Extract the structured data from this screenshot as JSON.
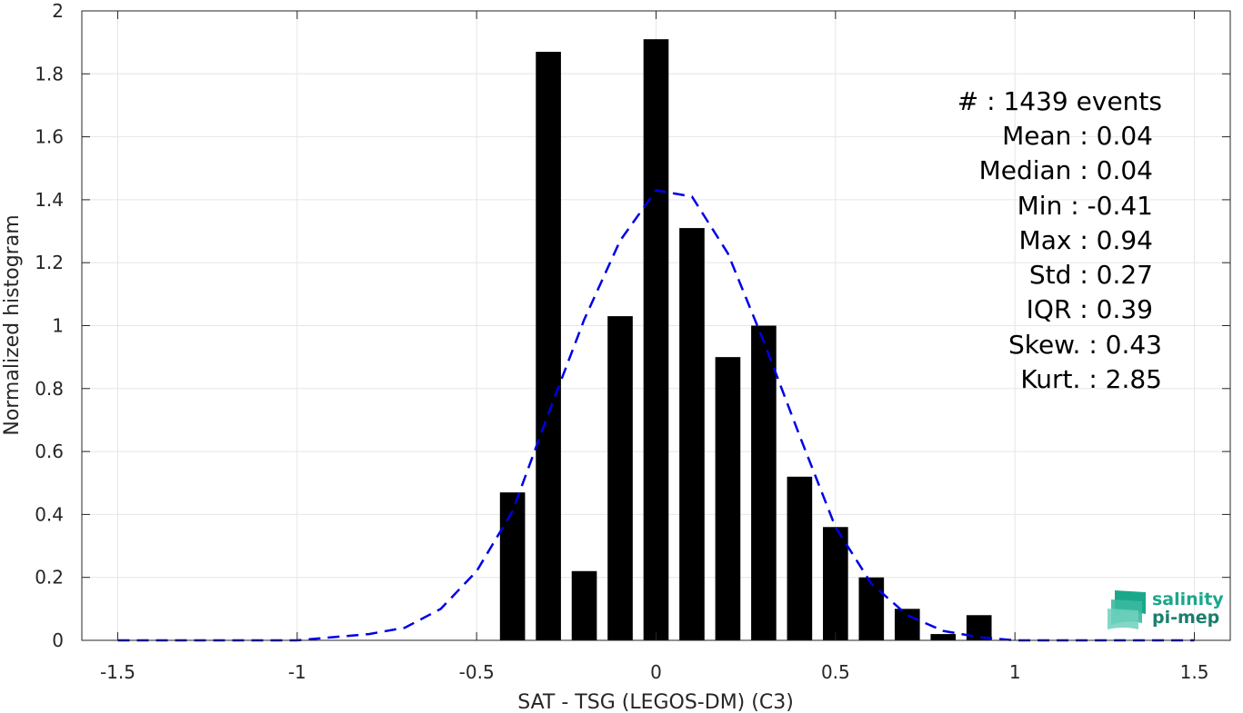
{
  "chart_data": {
    "type": "bar",
    "xlabel": "SAT - TSG (LEGOS-DM) (C3)",
    "ylabel": "Normalized histogram",
    "xlim": [
      -1.6,
      1.6
    ],
    "ylim": [
      0,
      2
    ],
    "grid": true,
    "x_ticks": [
      -1.5,
      -1,
      -0.5,
      0,
      0.5,
      1,
      1.5
    ],
    "x_tick_labels": [
      "-1.5",
      "-1",
      "-0.5",
      "0",
      "0.5",
      "1",
      "1.5"
    ],
    "y_ticks": [
      0,
      0.2,
      0.4,
      0.6,
      0.8,
      1,
      1.2,
      1.4,
      1.6,
      1.8,
      2
    ],
    "y_tick_labels": [
      "0",
      "0.2",
      "0.4",
      "0.6",
      "0.8",
      "1",
      "1.2",
      "1.4",
      "1.6",
      "1.8",
      "2"
    ],
    "bar_width": 0.07,
    "bars": {
      "color": "#000000",
      "x": [
        -0.4,
        -0.3,
        -0.2,
        -0.1,
        0,
        0.1,
        0.2,
        0.3,
        0.4,
        0.5,
        0.6,
        0.7,
        0.8,
        0.9
      ],
      "values": [
        0.47,
        1.87,
        0.22,
        1.03,
        1.91,
        1.31,
        0.9,
        1.0,
        0.52,
        0.36,
        0.2,
        0.1,
        0.02,
        0.08
      ]
    },
    "fit_curve": {
      "style": "dashed",
      "color": "#0000e6",
      "x": [
        -1.5,
        -1.4,
        -1.3,
        -1.2,
        -1.1,
        -1.0,
        -0.9,
        -0.8,
        -0.7,
        -0.6,
        -0.5,
        -0.4,
        -0.3,
        -0.2,
        -0.1,
        0.0,
        0.1,
        0.2,
        0.3,
        0.4,
        0.5,
        0.6,
        0.7,
        0.8,
        0.9,
        1.0,
        1.1,
        1.2,
        1.3,
        1.4,
        1.5
      ],
      "y": [
        0,
        0,
        0,
        0,
        0,
        0,
        0.01,
        0.02,
        0.04,
        0.1,
        0.22,
        0.41,
        0.72,
        1.02,
        1.27,
        1.43,
        1.41,
        1.23,
        0.95,
        0.65,
        0.36,
        0.18,
        0.08,
        0.03,
        0.01,
        0,
        0,
        0,
        0,
        0,
        0
      ]
    },
    "annotations": [
      "#  : 1439 events",
      "Mean : 0.04",
      "Median : 0.04",
      "Min : -0.41",
      "Max : 0.94",
      "Std : 0.27",
      "IQR : 0.39",
      "Skew. : 0.43",
      "Kurt. : 2.85"
    ]
  },
  "logo": {
    "line1": "salinity",
    "line2": "pi-mep",
    "colors": [
      "#1aa88a",
      "#3bb9a0",
      "#6fd0bd"
    ]
  }
}
